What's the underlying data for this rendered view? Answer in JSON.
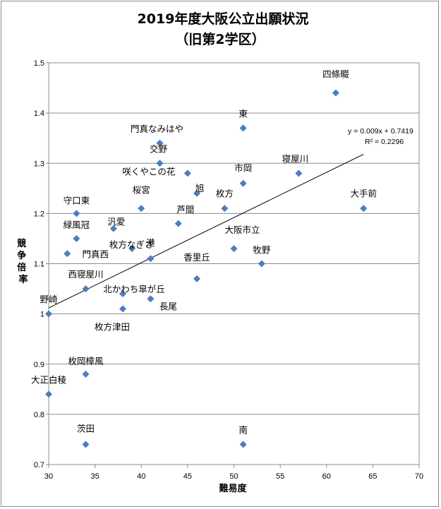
{
  "chart_data": {
    "type": "scatter",
    "title": "2019年度大阪公立出願状況",
    "subtitle": "（旧第2学区）",
    "xlabel": "難易度",
    "ylabel": "競争倍率",
    "xlim": [
      30,
      70
    ],
    "ylim": [
      0.7,
      1.5
    ],
    "x_ticks": [
      "30",
      "35",
      "40",
      "45",
      "50",
      "55",
      "60",
      "65",
      "70"
    ],
    "y_ticks": [
      "0.7",
      "0.8",
      "0.9",
      "1",
      "1.1",
      "1.2",
      "1.3",
      "1.4",
      "1.5"
    ],
    "grid": "horizontal",
    "legend": "none",
    "marker_color": "#4a7ebb",
    "points": [
      {
        "label": "四條畷",
        "x": 61,
        "y": 1.44
      },
      {
        "label": "東",
        "x": 51,
        "y": 1.37
      },
      {
        "label": "門真なみはや",
        "x": 42,
        "y": 1.34
      },
      {
        "label": "交野",
        "x": 42,
        "y": 1.3
      },
      {
        "label": "寝屋川",
        "x": 57,
        "y": 1.28
      },
      {
        "label": "咲くやこの花",
        "x": 45,
        "y": 1.28
      },
      {
        "label": "市岡",
        "x": 51,
        "y": 1.26
      },
      {
        "label": "旭",
        "x": 46,
        "y": 1.24
      },
      {
        "label": "守口東",
        "x": 33,
        "y": 1.2
      },
      {
        "label": "桜宮",
        "x": 40,
        "y": 1.21
      },
      {
        "label": "枚方",
        "x": 49,
        "y": 1.21
      },
      {
        "label": "大手前",
        "x": 64,
        "y": 1.21
      },
      {
        "label": "芦間",
        "x": 44,
        "y": 1.18
      },
      {
        "label": "汎愛",
        "x": 37,
        "y": 1.17
      },
      {
        "label": "緑風冠",
        "x": 33,
        "y": 1.15
      },
      {
        "label": "枚方なぎさ",
        "x": 39,
        "y": 1.13
      },
      {
        "label": "大阪市立",
        "x": 50,
        "y": 1.13
      },
      {
        "label": "門真西",
        "x": 32,
        "y": 1.12
      },
      {
        "label": "港",
        "x": 41,
        "y": 1.11
      },
      {
        "label": "牧野",
        "x": 53,
        "y": 1.1
      },
      {
        "label": "香里丘",
        "x": 46,
        "y": 1.07
      },
      {
        "label": "西寝屋川",
        "x": 34,
        "y": 1.05
      },
      {
        "label": "北かわち皐が丘",
        "x": 38,
        "y": 1.04
      },
      {
        "label": "長尾",
        "x": 41,
        "y": 1.03
      },
      {
        "label": "枚方津田",
        "x": 38,
        "y": 1.01
      },
      {
        "label": "野崎",
        "x": 30,
        "y": 1.0
      },
      {
        "label": "枚岡樟風",
        "x": 34,
        "y": 0.88
      },
      {
        "label": "大正白稜",
        "x": 30,
        "y": 0.84
      },
      {
        "label": "茨田",
        "x": 34,
        "y": 0.74
      },
      {
        "label": "南",
        "x": 51,
        "y": 0.74
      }
    ],
    "trendline": {
      "slope": 0.009,
      "intercept": 0.7419,
      "x_range": [
        30,
        64
      ],
      "equation": "y = 0.009x + 0.7419",
      "r2": "R² = 0.2296"
    }
  }
}
